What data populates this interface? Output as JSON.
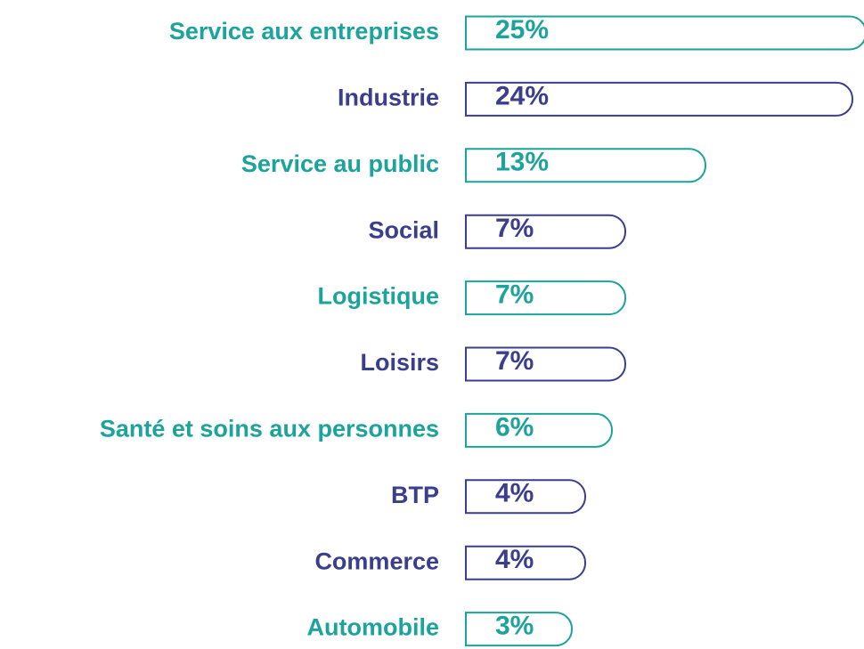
{
  "chart_data": {
    "type": "hbar",
    "categories": [
      "Service aux entreprises",
      "Industrie",
      "Service au public",
      "Social",
      "Logistique",
      "Loisirs",
      "Santé et soins aux personnes",
      "BTP",
      "Commerce",
      "Automobile"
    ],
    "values": [
      25,
      24,
      13,
      7,
      7,
      7,
      6,
      4,
      4,
      3
    ],
    "value_labels": [
      "25%",
      "24%",
      "13%",
      "7%",
      "7%",
      "7%",
      "6%",
      "4%",
      "4%",
      "3%"
    ],
    "colors": [
      "#1ba39c",
      "#3a3e8c",
      "#1ba39c",
      "#3a3e8c",
      "#1ba39c",
      "#3a3e8c",
      "#1ba39c",
      "#3a3e8c",
      "#3a3e8c",
      "#1ba39c"
    ]
  }
}
